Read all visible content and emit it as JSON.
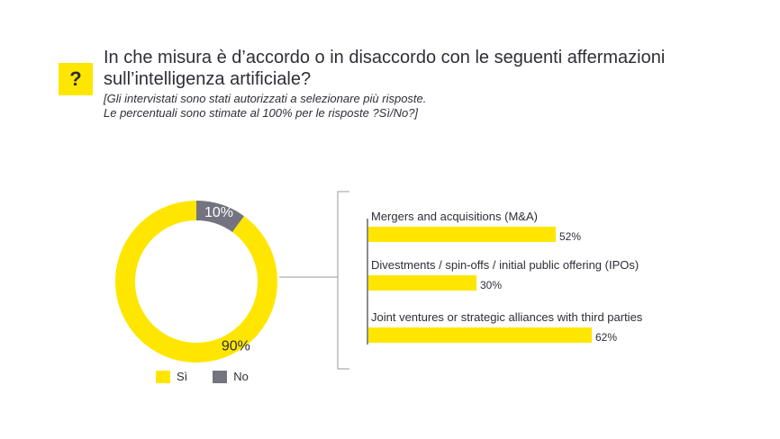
{
  "header": {
    "icon_text": "?",
    "title": "In che misura è d’accordo o in disaccordo  con le seguenti affermazioni sull’intelligenza artificiale?",
    "subtitle": "[Gli intervistati sono stati autorizzati  a selezionare più risposte.\nLe percentuali sono stimate al 100% per le risposte ?Sì/No?]"
  },
  "colors": {
    "yes": "#ffe600",
    "no": "#747480",
    "text": "#2e2e38",
    "line": "#999999"
  },
  "chart_data": [
    {
      "type": "pie",
      "variant": "donut",
      "categories": [
        "Sì",
        "No"
      ],
      "values": [
        90,
        10
      ],
      "data_labels": [
        "90%",
        "10%"
      ],
      "legend_position": "bottom"
    },
    {
      "type": "bar",
      "orientation": "horizontal",
      "categories": [
        "Mergers and acquisitions (M&A)",
        "Divestments / spin-offs / initial public offering (IPOs)",
        "Joint ventures or strategic alliances with third parties"
      ],
      "values": [
        52,
        30,
        62
      ],
      "data_labels": [
        "52%",
        "30%",
        "62%"
      ],
      "xlim": [
        0,
        100
      ]
    }
  ]
}
